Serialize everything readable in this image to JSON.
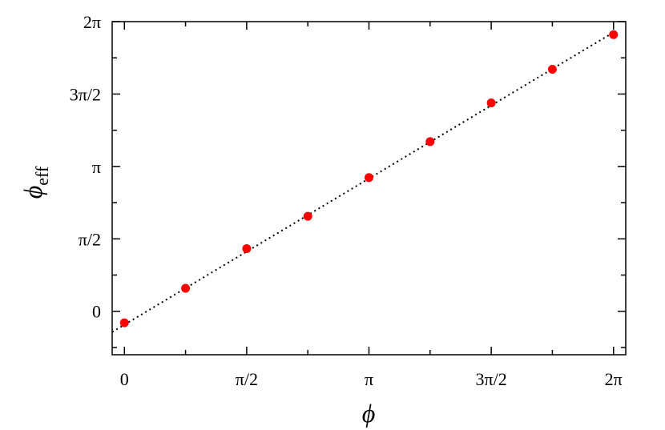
{
  "chart_data": {
    "type": "scatter",
    "xlabel": "ϕ",
    "ylabel": "ϕ",
    "ylabel_subscript": "eff",
    "xlim": [
      -0.1571,
      6.4403
    ],
    "ylim": [
      -0.9425,
      6.2832
    ],
    "x_ticks": [
      {
        "value": 0,
        "label": "0"
      },
      {
        "value": 1.5708,
        "label": "π/2"
      },
      {
        "value": 3.1416,
        "label": "π"
      },
      {
        "value": 4.7124,
        "label": "3π/2"
      },
      {
        "value": 6.2832,
        "label": "2π"
      }
    ],
    "y_ticks": [
      {
        "value": 0,
        "label": "0"
      },
      {
        "value": 1.5708,
        "label": "π/2"
      },
      {
        "value": 3.1416,
        "label": "π"
      },
      {
        "value": 4.7124,
        "label": "3π/2"
      },
      {
        "value": 6.2832,
        "label": "2π"
      }
    ],
    "series": [
      {
        "marker": "filled-circle",
        "color": "#ff0000",
        "x": [
          0,
          0.7854,
          1.5708,
          2.3562,
          3.1416,
          3.927,
          4.7124,
          5.4978,
          6.2832
        ],
        "y": [
          -0.25,
          0.5,
          1.36,
          2.06,
          2.9,
          3.68,
          4.52,
          5.25,
          6.0
        ]
      }
    ],
    "fit_line": {
      "style": "dotted",
      "color": "#000000",
      "x": [
        -0.1571,
        6.2832
      ],
      "y": [
        -0.45,
        6.05
      ]
    },
    "grid": false,
    "legend": "none"
  }
}
